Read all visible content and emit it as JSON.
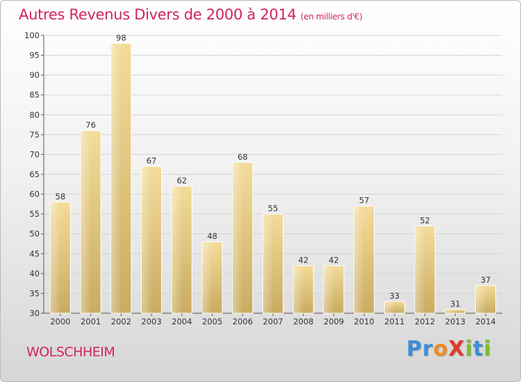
{
  "chart_data": {
    "type": "bar",
    "title": "Autres Revenus Divers de 2000 à 2014",
    "subtitle": "(en milliers d'€)",
    "categories": [
      "2000",
      "2001",
      "2002",
      "2003",
      "2004",
      "2005",
      "2006",
      "2007",
      "2008",
      "2009",
      "2010",
      "2011",
      "2012",
      "2013",
      "2014"
    ],
    "values": [
      58,
      76,
      98,
      67,
      62,
      48,
      68,
      55,
      42,
      42,
      57,
      33,
      52,
      31,
      37
    ],
    "ylim": [
      30,
      100
    ],
    "yticks": [
      30,
      35,
      40,
      45,
      50,
      55,
      60,
      65,
      70,
      75,
      80,
      85,
      90,
      95,
      100
    ],
    "grid": true,
    "data_labels": true,
    "bar_color": "#e2c577",
    "title_color": "#d0245c"
  },
  "footer": {
    "place": "WOLSCHHEIM",
    "logo_letters": [
      {
        "ch": "P",
        "color": "#3a8fd8"
      },
      {
        "ch": "r",
        "color": "#3a8fd8"
      },
      {
        "ch": "o",
        "color": "#f08a1c"
      },
      {
        "ch": "X",
        "color": "#e03a2a"
      },
      {
        "ch": "i",
        "color": "#7cbf2a"
      },
      {
        "ch": "t",
        "color": "#3a8fd8"
      },
      {
        "ch": "i",
        "color": "#7cbf2a"
      }
    ]
  }
}
